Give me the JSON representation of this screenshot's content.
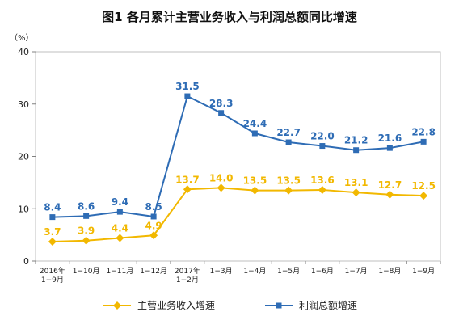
{
  "chart_data": {
    "type": "line",
    "title": "图1  各月累计主营业务收入与利润总额同比增速",
    "unit_label": "（%）",
    "categories": [
      [
        "2016年",
        "1−9月"
      ],
      [
        "1−10月"
      ],
      [
        "1−11月"
      ],
      [
        "1−12月"
      ],
      [
        "2017年",
        "1−2月"
      ],
      [
        "1−3月"
      ],
      [
        "1−4月"
      ],
      [
        "1−5月"
      ],
      [
        "1−6月"
      ],
      [
        "1−7月"
      ],
      [
        "1−8月"
      ],
      [
        "1−9月"
      ]
    ],
    "ylim": [
      0,
      40
    ],
    "yticks": [
      0,
      10,
      20,
      30,
      40
    ],
    "grid": false,
    "legend_position": "bottom",
    "series": [
      {
        "name": "主营业务收入增速",
        "color": "#f2b800",
        "marker": "diamond",
        "values": [
          3.7,
          3.9,
          4.4,
          4.9,
          13.7,
          14.0,
          13.5,
          13.5,
          13.6,
          13.1,
          12.7,
          12.5
        ],
        "labels": [
          "3.7",
          "3.9",
          "4.4",
          "4.9",
          "13.7",
          "14.0",
          "13.5",
          "13.5",
          "13.6",
          "13.1",
          "12.7",
          "12.5"
        ]
      },
      {
        "name": "利润总额增速",
        "color": "#2e6cb5",
        "marker": "square",
        "values": [
          8.4,
          8.6,
          9.4,
          8.5,
          31.5,
          28.3,
          24.4,
          22.7,
          22.0,
          21.2,
          21.6,
          22.8
        ],
        "labels": [
          "8.4",
          "8.6",
          "9.4",
          "8.5",
          "31.5",
          "28.3",
          "24.4",
          "22.7",
          "22.0",
          "21.2",
          "21.6",
          "22.8"
        ]
      }
    ]
  }
}
